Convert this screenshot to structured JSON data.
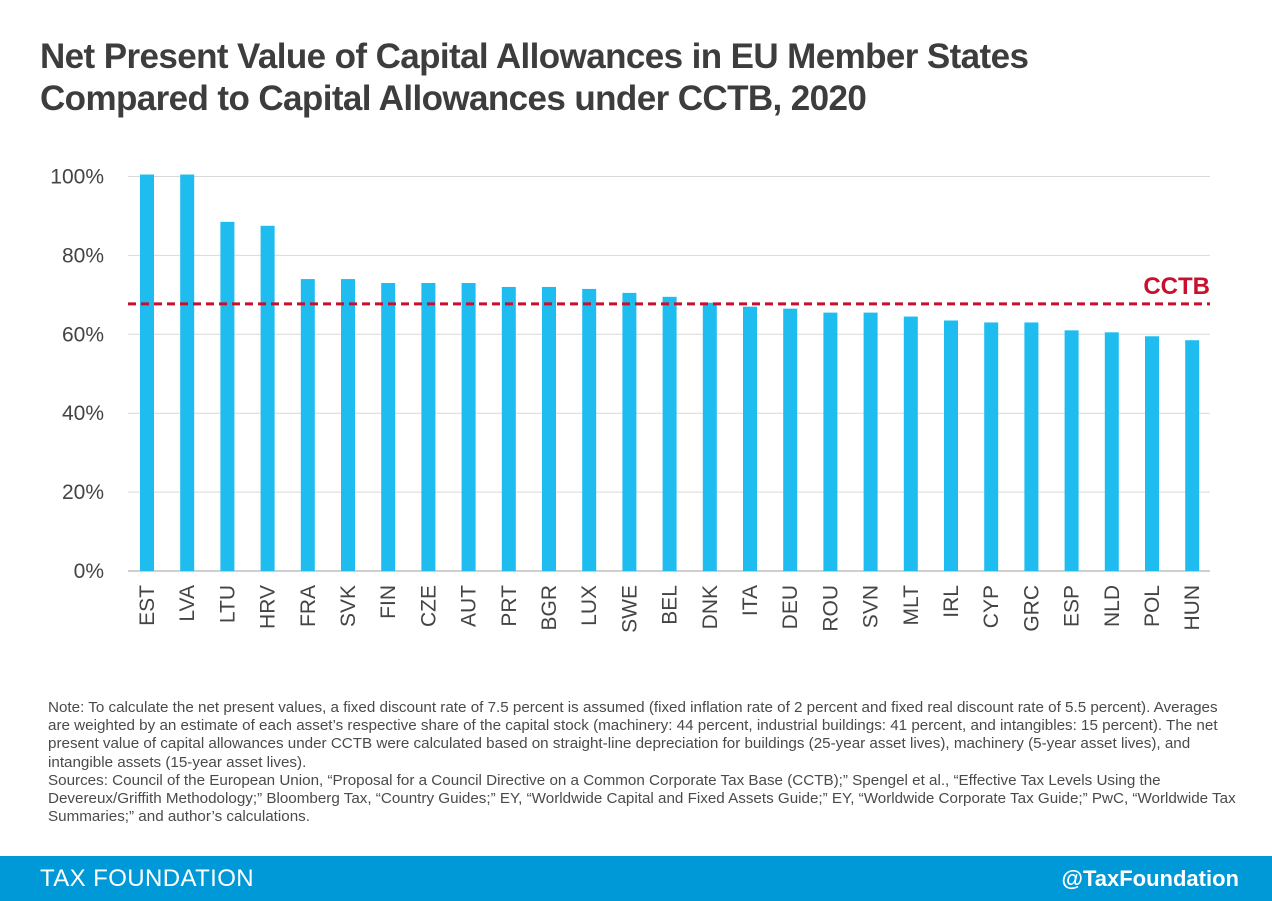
{
  "title": {
    "line1": "Net Present Value of Capital Allowances in EU Member States",
    "line2": "Compared to Capital Allowances under CCTB, 2020"
  },
  "colors": {
    "bar": "#1fbcf0",
    "reference_line": "#c8102e",
    "grid": "#d9d9d9",
    "axis": "#bfbfbf",
    "footer": "#0099d8"
  },
  "chart_data": {
    "type": "bar",
    "categories": [
      "EST",
      "LVA",
      "LTU",
      "HRV",
      "FRA",
      "SVK",
      "FIN",
      "CZE",
      "AUT",
      "PRT",
      "BGR",
      "LUX",
      "SWE",
      "BEL",
      "DNK",
      "ITA",
      "DEU",
      "ROU",
      "SVN",
      "MLT",
      "IRL",
      "CYP",
      "GRC",
      "ESP",
      "NLD",
      "POL",
      "HUN"
    ],
    "values": [
      100.5,
      100.5,
      88.5,
      87.5,
      74,
      74,
      73,
      73,
      73,
      72,
      72,
      71.5,
      70.5,
      69.5,
      68,
      67,
      66.5,
      65.5,
      65.5,
      64.5,
      63.5,
      63,
      63,
      61,
      60.5,
      59.5,
      58.5
    ],
    "ylim": [
      0,
      100
    ],
    "yticks": [
      "0%",
      "20%",
      "40%",
      "60%",
      "80%",
      "100%"
    ],
    "ytick_values": [
      0,
      20,
      40,
      60,
      80,
      100
    ],
    "grid": true,
    "reference_line": {
      "label": "CCTB",
      "value": 67.7
    }
  },
  "note": {
    "note_text": "Note: To calculate the net present values, a fixed discount rate of 7.5 percent is assumed (fixed inflation rate of 2 percent and fixed real discount rate of 5.5 percent). Averages are weighted by an estimate of each asset’s respective share of the capital stock (machinery: 44 percent, industrial buildings: 41 percent, and intangibles: 15 percent). The net present value of capital allowances under CCTB were calculated based on straight-line depreciation for buildings (25-year asset lives), machinery (5-year asset lives), and intangible assets (15-year asset lives).",
    "sources_text": "Sources: Council of the European Union, “Proposal for a Council Directive on a Common Corporate Tax Base (CCTB);” Spengel et al., “Effective Tax Levels Using the Devereux/Griffith Methodology;” Bloomberg Tax, “Country Guides;” EY, “Worldwide Capital and Fixed Assets Guide;” EY, “Worldwide Corporate Tax Guide;” PwC, “Worldwide Tax Summaries;” and author’s calculations."
  },
  "footer": {
    "brand": "TAX FOUNDATION",
    "handle": "@TaxFoundation"
  }
}
